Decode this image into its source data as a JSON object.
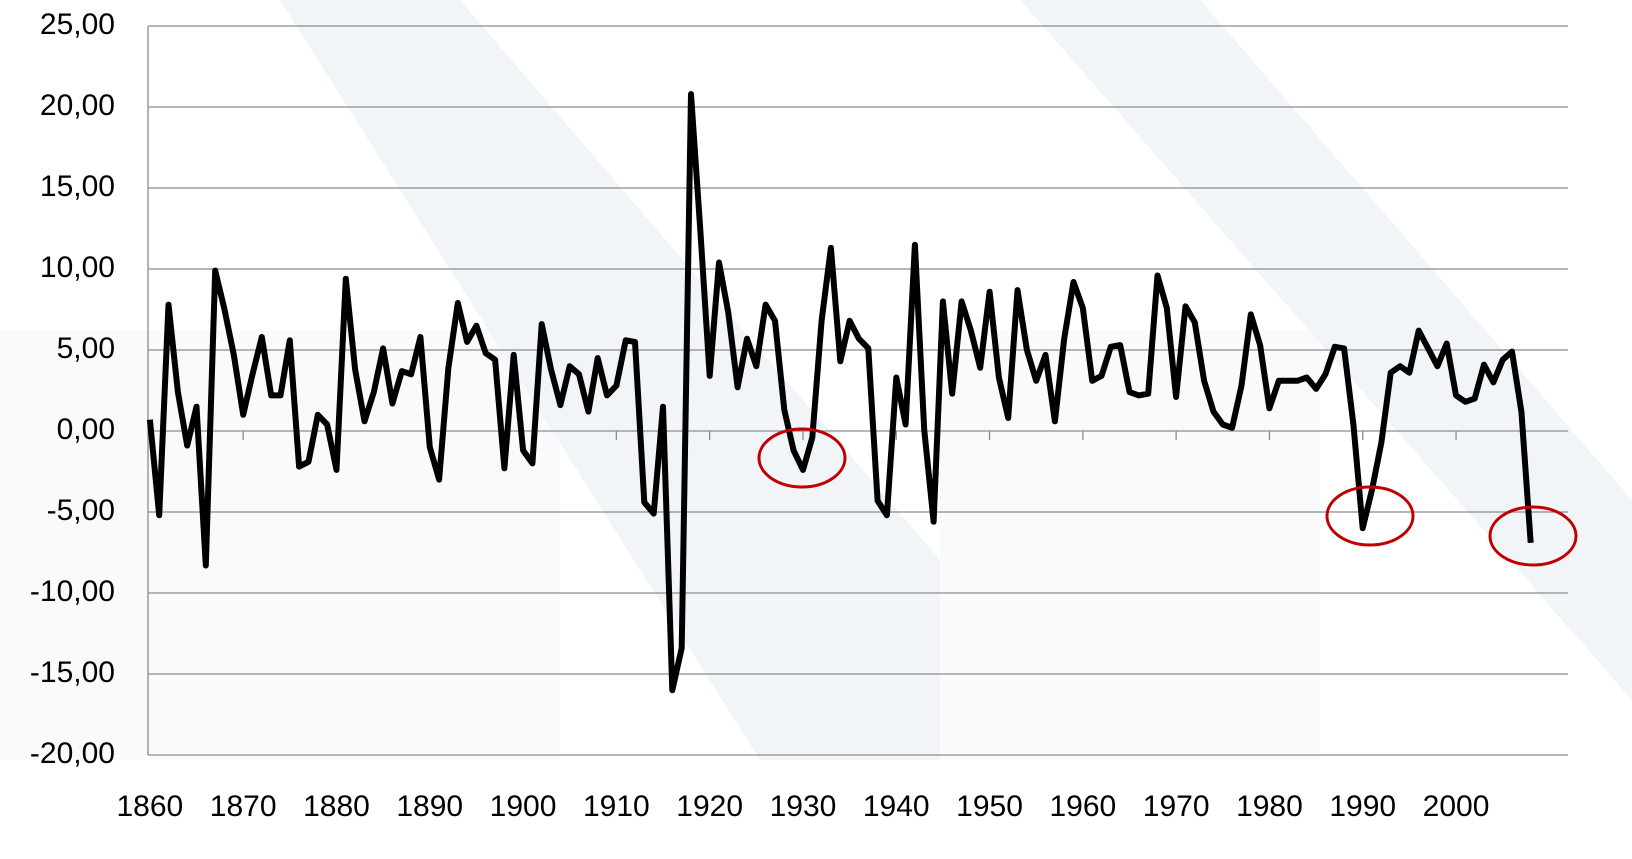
{
  "chart_data": {
    "type": "line",
    "x": [
      1860,
      1861,
      1862,
      1863,
      1864,
      1865,
      1866,
      1867,
      1868,
      1869,
      1870,
      1871,
      1872,
      1873,
      1874,
      1875,
      1876,
      1877,
      1878,
      1879,
      1880,
      1881,
      1882,
      1883,
      1884,
      1885,
      1886,
      1887,
      1888,
      1889,
      1890,
      1891,
      1892,
      1893,
      1894,
      1895,
      1896,
      1897,
      1898,
      1899,
      1900,
      1901,
      1902,
      1903,
      1904,
      1905,
      1906,
      1907,
      1908,
      1909,
      1910,
      1911,
      1912,
      1913,
      1914,
      1915,
      1916,
      1917,
      1918,
      1919,
      1920,
      1921,
      1922,
      1923,
      1924,
      1925,
      1926,
      1927,
      1928,
      1929,
      1930,
      1931,
      1932,
      1933,
      1934,
      1935,
      1936,
      1937,
      1938,
      1939,
      1940,
      1941,
      1942,
      1943,
      1944,
      1945,
      1946,
      1947,
      1948,
      1949,
      1950,
      1951,
      1952,
      1953,
      1954,
      1955,
      1956,
      1957,
      1958,
      1959,
      1960,
      1961,
      1962,
      1963,
      1964,
      1965,
      1966,
      1967,
      1968,
      1969,
      1970,
      1971,
      1972,
      1973,
      1974,
      1975,
      1976,
      1977,
      1978,
      1979,
      1980,
      1981,
      1982,
      1983,
      1984,
      1985,
      1986,
      1987,
      1988,
      1989,
      1990,
      1991,
      1992,
      1993,
      1994,
      1995,
      1996,
      1997,
      1998,
      1999,
      2000,
      2001,
      2002,
      2003,
      2004,
      2005,
      2006,
      2007,
      2008
    ],
    "values": [
      0.7,
      -5.2,
      7.8,
      2.4,
      -0.9,
      1.5,
      -8.3,
      9.9,
      7.5,
      4.7,
      1.0,
      3.5,
      5.8,
      2.2,
      2.2,
      5.6,
      -2.2,
      -1.9,
      1.0,
      0.4,
      -2.4,
      9.4,
      3.8,
      0.6,
      2.4,
      5.1,
      1.7,
      3.7,
      3.5,
      5.8,
      -1.0,
      -3.0,
      3.9,
      7.9,
      5.5,
      6.5,
      4.8,
      4.4,
      -2.3,
      4.7,
      -1.2,
      -2.0,
      6.6,
      3.8,
      1.6,
      4.0,
      3.5,
      1.2,
      4.5,
      2.2,
      2.8,
      5.6,
      5.5,
      -4.4,
      -5.1,
      1.5,
      -16.0,
      -13.4,
      20.8,
      12.4,
      3.4,
      10.4,
      7.3,
      2.7,
      5.7,
      4.0,
      7.8,
      6.8,
      1.3,
      -1.2,
      -2.4,
      -0.4,
      6.8,
      11.3,
      4.3,
      6.8,
      5.7,
      5.1,
      -4.3,
      -5.2,
      3.3,
      0.4,
      11.5,
      0.1,
      -5.6,
      8.0,
      2.3,
      8.0,
      6.2,
      3.9,
      8.6,
      3.3,
      0.8,
      8.7,
      5.0,
      3.1,
      4.7,
      0.6,
      5.7,
      9.2,
      7.6,
      3.1,
      3.4,
      5.2,
      5.3,
      2.4,
      2.2,
      2.3,
      9.6,
      7.6,
      2.1,
      7.7,
      6.7,
      3.1,
      1.2,
      0.4,
      0.2,
      2.8,
      7.2,
      5.3,
      1.4,
      3.1,
      3.1,
      3.1,
      3.3,
      2.6,
      3.5,
      5.2,
      5.1,
      0.4,
      -6.0,
      -3.6,
      -0.7,
      3.6,
      4.0,
      3.6,
      6.2,
      5.1,
      4.0,
      5.4,
      2.2,
      1.8,
      2.0,
      4.1,
      3.0,
      4.4,
      4.9,
      1.2,
      -6.9
    ],
    "color": "#000000",
    "xlim": [
      1859.8,
      2012
    ],
    "xticks": [
      1860,
      1870,
      1880,
      1890,
      1900,
      1910,
      1920,
      1930,
      1940,
      1950,
      1960,
      1970,
      1980,
      1990,
      2000
    ],
    "ylim": [
      -20,
      25
    ],
    "yticks": [
      {
        "value": -20,
        "label": "-20,00"
      },
      {
        "value": -15,
        "label": "-15,00"
      },
      {
        "value": -10,
        "label": "-10,00"
      },
      {
        "value": -5,
        "label": "-5,00"
      },
      {
        "value": 0,
        "label": "0,00"
      },
      {
        "value": 5,
        "label": "5,00"
      },
      {
        "value": 10,
        "label": "10,00"
      },
      {
        "value": 15,
        "label": "15,00"
      },
      {
        "value": 20,
        "label": "20,00"
      },
      {
        "value": 25,
        "label": "25,00"
      }
    ],
    "grid": true
  }
}
